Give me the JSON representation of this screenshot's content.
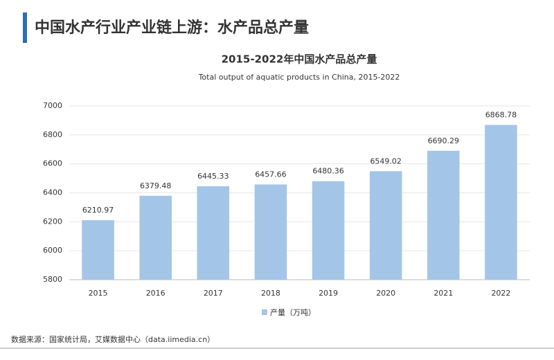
{
  "header": {
    "title": "中国水产行业产业链上游：水产品总产量"
  },
  "chart_data": {
    "type": "bar",
    "title": "2015-2022年中国水产品总产量",
    "subtitle": "Total output of aquatic products in China, 2015-2022",
    "categories": [
      "2015",
      "2016",
      "2017",
      "2018",
      "2019",
      "2020",
      "2021",
      "2022"
    ],
    "series": [
      {
        "name": "产量（万吨）",
        "color": "#a3c5e8",
        "values": [
          6210.97,
          6379.48,
          6445.33,
          6457.66,
          6480.36,
          6549.02,
          6690.29,
          6868.78
        ]
      }
    ],
    "ylim": [
      5800,
      7000
    ],
    "yticks": [
      5800,
      6000,
      6200,
      6400,
      6600,
      6800,
      7000
    ],
    "grid": true,
    "legend": "bottom"
  },
  "footer": {
    "source": "数据来源：国家统计局，艾媒数据中心（data.iimedia.cn）"
  }
}
